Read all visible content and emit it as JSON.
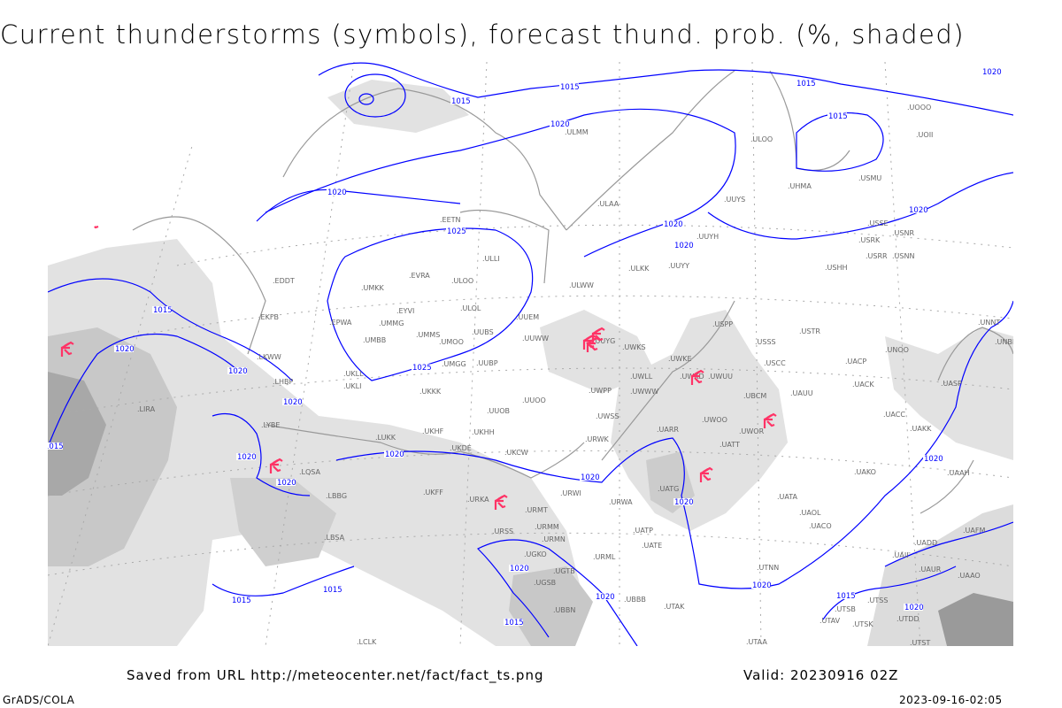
{
  "title": "Current thunderstorms (symbols), forecast thund. prob. (%, shaded)",
  "footer": {
    "source": "Saved from URL http://meteocenter.net/fact/fact_ts.png",
    "valid": "Valid: 20230916 02Z",
    "software": "GrADS/COLA",
    "timestamp": "2023-09-16-02:05"
  },
  "colors": {
    "isobar": "#0000ff",
    "thunderstorm_symbol": "#ff3366",
    "shading_light": "#e4e4e4",
    "shading_mid": "#c8c8c8",
    "shading_dark": "#9a9a9a",
    "coastline": "#999999",
    "station_label": "#666666"
  },
  "stations": [
    "ULOO",
    "UOOO",
    "UOII",
    "USMU",
    "UHMA",
    "UUYS",
    "ULAA",
    "ULMM",
    "USSE",
    "USRK",
    "USNR",
    "USRR",
    "USNN",
    "USHH",
    "UUYY",
    "ULKK",
    "UUYH",
    "ULWW",
    "EETN",
    "ULLI",
    "EVRA",
    "ULOO",
    "UMKK",
    "EDDT",
    "ULOL",
    "EYVI",
    "UUEM",
    "UMMG",
    "EPWA",
    "EKFB",
    "UMMS",
    "UMOO",
    "UUBS",
    "UMBB",
    "UUWW",
    "UUYG",
    "UWKS",
    "USPP",
    "USSS",
    "USTR",
    "UNOO",
    "UNNT",
    "UNBB",
    "USCC",
    "UACP",
    "UWKE",
    "UWKD",
    "UWUU",
    "UWLL",
    "UKLL",
    "UKLI",
    "UUBP",
    "UMGG",
    "LKWW",
    "LHBP",
    "UKKK",
    "UWPP",
    "UWWW",
    "UBCM",
    "UAUU",
    "UACK",
    "UASP",
    "UUOO",
    "UUOB",
    "LIRA",
    "LYBE",
    "UWSS",
    "UWOO",
    "UWOR",
    "UACC",
    "UAKK",
    "UKHH",
    "UKHF",
    "LUKK",
    "URWK",
    "UATT",
    "UKDE",
    "UKCW",
    "UARR",
    "LQSA",
    "UKFF",
    "URKA",
    "URWI",
    "URWA",
    "UAKO",
    "UAAH",
    "UATA",
    "UAOL",
    "UACO",
    "LBBG",
    "URMT",
    "URMM",
    "URMN",
    "URSS",
    "UATG",
    "UATP",
    "UATE",
    "LBSA",
    "UGKO",
    "URML",
    "UAFM",
    "UADD",
    "UAII",
    "UTNN",
    "UGTB",
    "UGSB",
    "UBBB",
    "UBBN",
    "UTAK",
    "UTAV",
    "UTSS",
    "UTSB",
    "UTSK",
    "UTDD",
    "LCLK",
    "UTAA",
    "UTST",
    "UAAO",
    "UAUR"
  ],
  "isobar_labels": [
    "1015",
    "1015",
    "1015",
    "1015",
    "1020",
    "1020",
    "1020",
    "1025",
    "1020",
    "1020",
    "1020",
    "1015",
    "1020",
    "1020",
    "1025",
    "1020",
    "1015",
    "1020",
    "1020",
    "1020",
    "1020",
    "1020",
    "1020",
    "1020",
    "1015",
    "1015",
    "1020",
    "1020",
    "1015",
    "1015",
    "1020"
  ],
  "thunderstorm_count": 10
}
